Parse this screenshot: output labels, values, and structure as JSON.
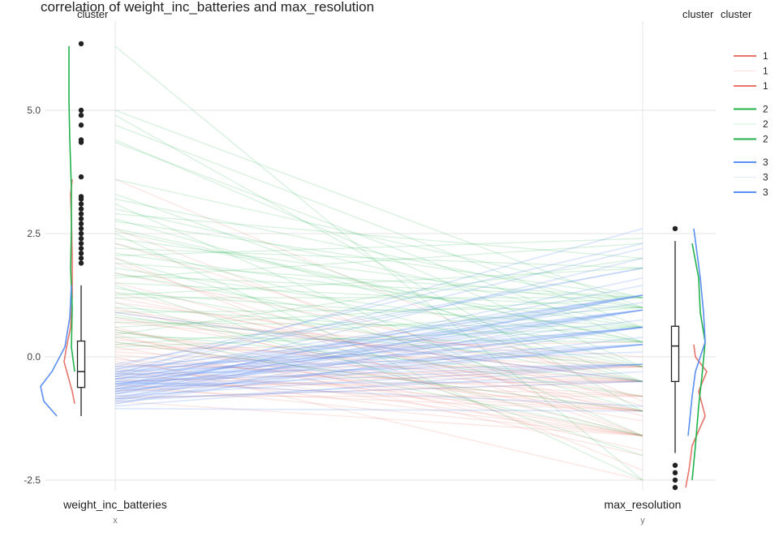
{
  "chart_data": {
    "type": "line",
    "title": "correlation of weight_inc_batteries and max_resolution",
    "subtitles": {
      "left": "cluster",
      "right_a": "cluster",
      "right_b": "cluster"
    },
    "x_categories": [
      "weight_inc_batteries",
      "max_resolution"
    ],
    "x_sublabels": [
      "x",
      "y"
    ],
    "y_ticks": [
      "-2.5",
      "0.0",
      "2.5",
      "5.0"
    ],
    "y_tick_values": [
      -2.5,
      0.0,
      2.5,
      5.0
    ],
    "ylim": [
      -2.75,
      6.6
    ],
    "grid": true,
    "legend_placement": "top-right",
    "legend": [
      {
        "label": "1",
        "cluster": 1,
        "style": "line"
      },
      {
        "label": "1",
        "cluster": 1,
        "style": "faint"
      },
      {
        "label": "1",
        "cluster": 1,
        "style": "line"
      },
      {
        "label": "2",
        "cluster": 2,
        "style": "line"
      },
      {
        "label": "2",
        "cluster": 2,
        "style": "faint"
      },
      {
        "label": "2",
        "cluster": 2,
        "style": "line"
      },
      {
        "label": "3",
        "cluster": 3,
        "style": "line"
      },
      {
        "label": "3",
        "cluster": 3,
        "style": "faint"
      },
      {
        "label": "3",
        "cluster": 3,
        "style": "line"
      }
    ],
    "colors": {
      "1": "#e8746a",
      "2": "#22b24c",
      "3": "#5b8ff0"
    },
    "segments": {
      "1": [
        [
          2.3,
          -1.0
        ],
        [
          1.9,
          -1.6
        ],
        [
          1.5,
          -1.2
        ],
        [
          1.2,
          -0.8
        ],
        [
          1.0,
          -1.6
        ],
        [
          0.9,
          -0.5
        ],
        [
          0.8,
          -1.1
        ],
        [
          0.7,
          -0.2
        ],
        [
          0.6,
          -1.9
        ],
        [
          0.5,
          -0.8
        ],
        [
          0.4,
          -1.6
        ],
        [
          0.35,
          -0.5
        ],
        [
          0.3,
          -1.1
        ],
        [
          0.25,
          -0.2
        ],
        [
          0.2,
          -1.6
        ],
        [
          0.15,
          0.3
        ],
        [
          0.1,
          -0.5
        ],
        [
          0.05,
          -1.1
        ],
        [
          0.0,
          -2.5
        ],
        [
          -0.05,
          -0.8
        ],
        [
          -0.1,
          -1.6
        ],
        [
          -0.15,
          -0.5
        ],
        [
          -0.2,
          -0.2
        ],
        [
          -0.25,
          -1.1
        ],
        [
          -0.3,
          -1.6
        ],
        [
          -0.35,
          -0.5
        ],
        [
          -0.4,
          -0.8
        ],
        [
          -0.45,
          -1.1
        ],
        [
          -0.5,
          -0.2
        ],
        [
          -0.55,
          -1.6
        ],
        [
          -0.6,
          -0.5
        ],
        [
          -0.65,
          -1.1
        ],
        [
          -0.7,
          -0.2
        ],
        [
          -0.8,
          -0.8
        ],
        [
          -0.85,
          -0.5
        ],
        [
          -0.9,
          -1.6
        ],
        [
          1.1,
          -0.2
        ],
        [
          1.3,
          -1.1
        ],
        [
          0.95,
          -0.5
        ],
        [
          0.45,
          -2.0
        ],
        [
          2.6,
          -1.6
        ],
        [
          0.75,
          0.0
        ],
        [
          1.7,
          -0.5
        ],
        [
          0.55,
          -1.3
        ],
        [
          3.6,
          -0.9
        ],
        [
          2.0,
          -2.3
        ]
      ],
      "2": [
        [
          6.3,
          -2.5
        ],
        [
          5.0,
          1.0
        ],
        [
          4.9,
          -1.1
        ],
        [
          4.7,
          0.6
        ],
        [
          4.4,
          -0.2
        ],
        [
          4.35,
          0.3
        ],
        [
          3.6,
          1.2
        ],
        [
          3.3,
          -0.5
        ],
        [
          3.2,
          1.0
        ],
        [
          3.1,
          -1.6
        ],
        [
          3.0,
          0.6
        ],
        [
          2.9,
          2.0
        ],
        [
          2.8,
          -0.2
        ],
        [
          2.75,
          1.2
        ],
        [
          2.6,
          0.3
        ],
        [
          2.5,
          -2.5
        ],
        [
          2.4,
          1.0
        ],
        [
          2.3,
          -0.5
        ],
        [
          2.2,
          1.8
        ],
        [
          2.1,
          0.6
        ],
        [
          2.0,
          -1.1
        ],
        [
          1.9,
          1.2
        ],
        [
          1.8,
          0.3
        ],
        [
          1.7,
          -0.2
        ],
        [
          1.6,
          2.3
        ],
        [
          1.5,
          1.0
        ],
        [
          1.4,
          -0.5
        ],
        [
          1.3,
          0.6
        ],
        [
          1.2,
          1.2
        ],
        [
          1.1,
          -1.6
        ],
        [
          1.0,
          0.3
        ],
        [
          0.9,
          1.0
        ],
        [
          0.8,
          -0.2
        ],
        [
          0.7,
          0.6
        ],
        [
          0.6,
          1.2
        ],
        [
          0.5,
          -0.5
        ],
        [
          0.45,
          2.0
        ],
        [
          0.4,
          0.3
        ],
        [
          0.3,
          -1.1
        ],
        [
          0.25,
          1.0
        ],
        [
          0.2,
          0.6
        ],
        [
          1.65,
          1.2
        ],
        [
          2.55,
          0.3
        ],
        [
          1.25,
          1.8
        ],
        [
          0.55,
          -1.6
        ],
        [
          2.05,
          2.4
        ],
        [
          0.85,
          -0.8
        ],
        [
          1.45,
          -2.0
        ]
      ],
      "3": [
        [
          -0.2,
          2.3
        ],
        [
          -0.25,
          1.8
        ],
        [
          -0.3,
          1.25
        ],
        [
          -0.35,
          0.95
        ],
        [
          -0.4,
          0.6
        ],
        [
          -0.45,
          0.25
        ],
        [
          -0.5,
          -0.15
        ],
        [
          -0.55,
          -0.5
        ],
        [
          -0.6,
          1.25
        ],
        [
          -0.65,
          0.95
        ],
        [
          -0.7,
          0.6
        ],
        [
          -0.75,
          0.25
        ],
        [
          -0.8,
          -0.15
        ],
        [
          -0.85,
          -0.5
        ],
        [
          -0.9,
          1.25
        ],
        [
          -0.95,
          0.95
        ],
        [
          -0.4,
          1.25
        ],
        [
          -0.5,
          0.95
        ],
        [
          -0.6,
          0.6
        ],
        [
          -0.7,
          0.25
        ],
        [
          -0.3,
          0.6
        ],
        [
          -0.2,
          0.25
        ],
        [
          -0.35,
          -0.15
        ],
        [
          -0.45,
          1.25
        ],
        [
          -0.55,
          0.95
        ],
        [
          -0.65,
          0.6
        ],
        [
          -0.75,
          1.25
        ],
        [
          -0.85,
          0.25
        ],
        [
          -0.95,
          0.6
        ],
        [
          -1.0,
          -0.15
        ],
        [
          -0.15,
          1.8
        ],
        [
          -0.25,
          0.95
        ],
        [
          -0.35,
          2.6
        ],
        [
          -0.45,
          0.6
        ],
        [
          -0.55,
          0.25
        ],
        [
          -0.65,
          -0.15
        ],
        [
          -0.75,
          0.95
        ],
        [
          -0.85,
          1.25
        ],
        [
          -0.6,
          2.0
        ],
        [
          -0.7,
          1.6
        ],
        [
          -0.8,
          0.4
        ],
        [
          -0.9,
          -0.3
        ],
        [
          -0.45,
          1.1
        ],
        [
          -0.55,
          0.75
        ],
        [
          -0.65,
          1.45
        ],
        [
          -0.5,
          -1.0
        ],
        [
          -0.4,
          2.2
        ],
        [
          -0.3,
          0.1
        ],
        [
          0.9,
          -0.5
        ],
        [
          -1.05,
          -1.1
        ]
      ]
    },
    "boxplots": {
      "x": {
        "min": -1.2,
        "q1": -0.62,
        "median": -0.3,
        "q3": 0.32,
        "max": 1.45,
        "outliers": [
          1.9,
          2.0,
          2.1,
          2.2,
          2.3,
          2.4,
          2.5,
          2.6,
          2.7,
          2.8,
          2.9,
          3.0,
          3.1,
          3.2,
          3.25,
          3.65,
          4.35,
          4.4,
          4.7,
          4.9,
          5.0,
          6.35
        ]
      },
      "y": {
        "min": -1.95,
        "q1": -0.5,
        "median": 0.22,
        "q3": 0.62,
        "max": 2.35,
        "outliers": [
          -2.2,
          -2.35,
          -2.5,
          -2.65,
          2.6
        ]
      }
    },
    "densities": {
      "x": {
        "1": [
          [
            -0.95,
            0
          ],
          [
            -0.7,
            3
          ],
          [
            -0.4,
            8
          ],
          [
            -0.1,
            13
          ],
          [
            0.2,
            10
          ],
          [
            0.6,
            5
          ],
          [
            1.2,
            3
          ],
          [
            2.0,
            3
          ],
          [
            2.8,
            4
          ],
          [
            3.3,
            5
          ],
          [
            3.6,
            3
          ]
        ],
        "2": [
          [
            -0.3,
            0
          ],
          [
            0.2,
            4
          ],
          [
            1.0,
            3
          ],
          [
            1.8,
            5
          ],
          [
            2.6,
            4
          ],
          [
            3.4,
            4
          ],
          [
            4.4,
            6
          ],
          [
            5.2,
            7
          ],
          [
            6.3,
            7
          ]
        ],
        "3": [
          [
            -1.2,
            22
          ],
          [
            -0.9,
            38
          ],
          [
            -0.6,
            42
          ],
          [
            -0.3,
            28
          ],
          [
            0.2,
            12
          ],
          [
            0.8,
            6
          ],
          [
            1.45,
            4
          ]
        ]
      },
      "y": {
        "1": [
          [
            -2.65,
            2
          ],
          [
            -2.3,
            6
          ],
          [
            -1.8,
            10
          ],
          [
            -1.2,
            26
          ],
          [
            -0.7,
            18
          ],
          [
            -0.3,
            28
          ],
          [
            0.0,
            14
          ],
          [
            0.25,
            12
          ]
        ],
        "2": [
          [
            -2.5,
            10
          ],
          [
            -1.8,
            14
          ],
          [
            -1.0,
            18
          ],
          [
            -0.4,
            22
          ],
          [
            0.3,
            26
          ],
          [
            0.9,
            20
          ],
          [
            1.6,
            18
          ],
          [
            2.3,
            10
          ]
        ],
        "3": [
          [
            -1.6,
            5
          ],
          [
            -0.8,
            10
          ],
          [
            -0.3,
            14
          ],
          [
            0.3,
            26
          ],
          [
            0.9,
            24
          ],
          [
            1.6,
            20
          ],
          [
            2.6,
            12
          ]
        ]
      }
    }
  }
}
